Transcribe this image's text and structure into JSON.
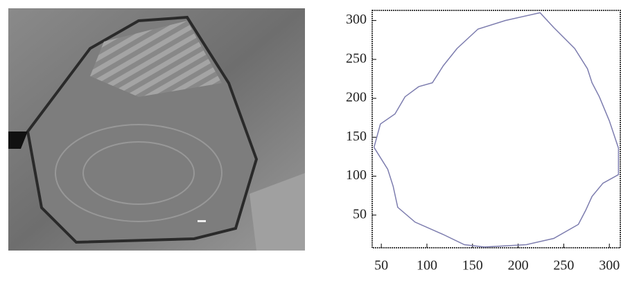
{
  "chart_data": {
    "type": "line",
    "x": [
      42,
      49,
      65,
      76,
      91,
      106,
      118,
      133,
      156,
      186,
      224,
      239,
      262,
      276,
      281,
      289,
      300,
      310,
      310,
      293,
      281,
      274,
      266,
      239,
      209,
      163,
      141,
      118,
      87,
      68,
      63,
      57,
      42
    ],
    "series": [
      {
        "color": "#7c7cae",
        "values": [
          137,
          167,
          180,
          202,
          215,
          220,
          242,
          264,
          289,
          300,
          310,
          291,
          264,
          238,
          220,
          202,
          171,
          136,
          102,
          91,
          74,
          56,
          38,
          20,
          12,
          9,
          12,
          25,
          41,
          60,
          87,
          109,
          137
        ]
      }
    ],
    "xlim": [
      40,
      312
    ],
    "ylim": [
      8,
      313
    ],
    "xticks": [
      50,
      100,
      150,
      200,
      250,
      300
    ],
    "yticks": [
      50,
      100,
      150,
      200,
      250,
      300
    ]
  }
}
